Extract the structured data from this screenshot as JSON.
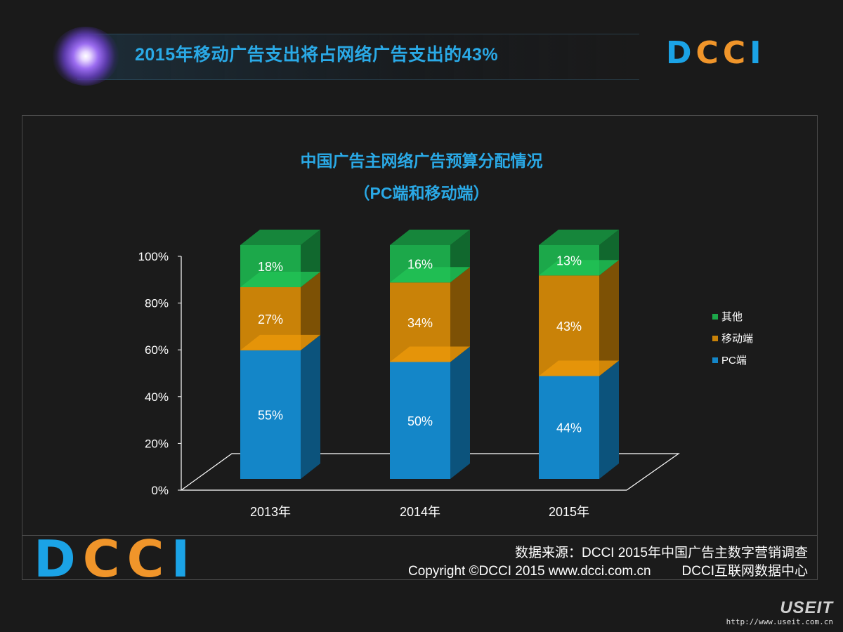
{
  "header": {
    "title": "2015年移动广告支出将占网络广告支出的43%",
    "logo": [
      "D",
      "CC",
      "I"
    ]
  },
  "chart_data": {
    "type": "bar",
    "stacked": true,
    "title": "中国广告主网络广告预算分配情况",
    "subtitle": "（PC端和移动端）",
    "categories": [
      "2013年",
      "2014年",
      "2015年"
    ],
    "series": [
      {
        "name": "PC端",
        "color": "#1486c8",
        "values": [
          55,
          50,
          44
        ],
        "labels": [
          "55%",
          "50%",
          "44%"
        ]
      },
      {
        "name": "移动端",
        "color": "#c98208",
        "values": [
          27,
          34,
          43
        ],
        "labels": [
          "27%",
          "34%",
          "43%"
        ]
      },
      {
        "name": "其他",
        "color": "#1ca84a",
        "values": [
          18,
          16,
          13
        ],
        "labels": [
          "18%",
          "16%",
          "13%"
        ]
      }
    ],
    "legend": [
      "其他",
      "移动端",
      "PC端"
    ],
    "yticks": [
      "0%",
      "20%",
      "40%",
      "60%",
      "80%",
      "100%"
    ],
    "ylim": [
      0,
      100
    ],
    "legend_position": "right"
  },
  "footer": {
    "source": "数据来源：DCCI  2015年中国广告主数字营销调查",
    "copyright": "Copyright ©DCCI 2015 www.dcci.com.cn",
    "org": "DCCI互联网数据中心",
    "logo": [
      "D",
      "CC",
      "I"
    ]
  },
  "watermark": {
    "brand": "USEIT",
    "url": "http://www.useit.com.cn"
  }
}
